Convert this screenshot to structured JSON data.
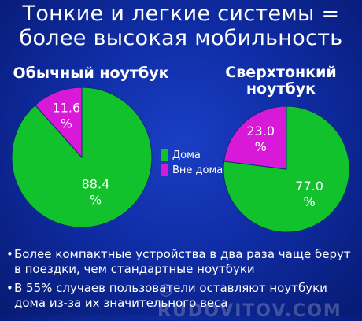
{
  "title": {
    "line1": "Тонкие и легкие системы =",
    "line2": "более высокая мобильность"
  },
  "colors": {
    "home": "#11c22c",
    "away": "#d81ad8",
    "background": "#0f2da6"
  },
  "chart_data": [
    {
      "type": "pie",
      "title": "Обычный ноутбук",
      "slices": [
        {
          "label": "Дома",
          "value": 88.4,
          "display": "88.4\n%"
        },
        {
          "label": "Вне дома",
          "value": 11.6,
          "display": "11.6\n%"
        }
      ]
    },
    {
      "type": "pie",
      "title": "Сверхтонкий\nноутбук",
      "slices": [
        {
          "label": "Дома",
          "value": 77.0,
          "display": "77.0\n%"
        },
        {
          "label": "Вне дома",
          "value": 23.0,
          "display": "23.0\n%"
        }
      ]
    }
  ],
  "legend": [
    {
      "label": "Дома",
      "color": "#11c22c"
    },
    {
      "label": "Вне дома",
      "color": "#d81ad8"
    }
  ],
  "bullets": [
    "Более компактные устройства в два раза чаще берут в поездки, чем стандартные ноутбуки",
    "В 55% случаев пользователи оставляют ноутбуки дома из-за их значительного веса"
  ],
  "watermark": "© RUDOVITOV.COM"
}
